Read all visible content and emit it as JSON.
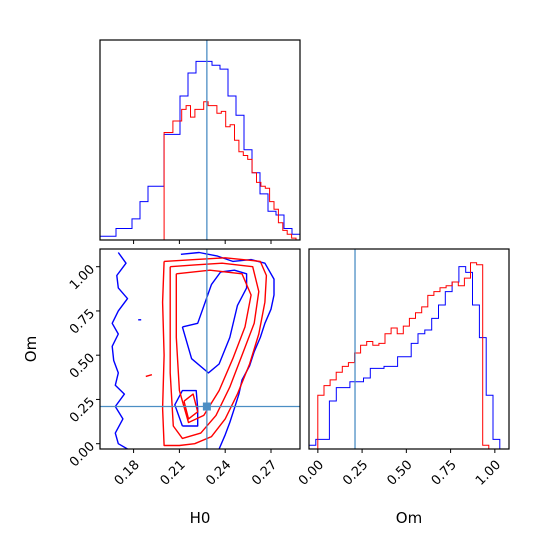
{
  "chart_data": {
    "type": "corner",
    "parameters": [
      "H0",
      "Om"
    ],
    "truth": {
      "H0": 0.228,
      "Om": 0.21
    },
    "colors": {
      "blue": "#0000ff",
      "red": "#ff0000",
      "truth": "#4c8ec4"
    },
    "panels": [
      {
        "id": "h0-marginal",
        "type": "histogram",
        "param": "H0",
        "xlim": [
          0.158,
          0.289
        ],
        "y_ticks_shown": false,
        "x_tick_labels_shown": false,
        "series": [
          {
            "color": "#0000ff",
            "bin_start": 0.158,
            "bin_width": 0.00524,
            "heights": [
              0.02,
              0.02,
              0.06,
              0.06,
              0.11,
              0.2,
              0.28,
              0.28,
              0.55,
              0.55,
              0.75,
              0.87,
              0.93,
              0.93,
              0.91,
              0.89,
              0.75,
              0.65,
              0.47,
              0.35,
              0.24,
              0.15,
              0.13,
              0.06,
              0.03,
              0.01
            ]
          },
          {
            "color": "#ff0000",
            "bin_start": 0.2,
            "bin_width": 0.00288,
            "heights": [
              0.56,
              0.56,
              0.62,
              0.62,
              0.68,
              0.7,
              0.64,
              0.68,
              0.68,
              0.72,
              0.7,
              0.7,
              0.66,
              0.67,
              0.59,
              0.6,
              0.52,
              0.46,
              0.44,
              0.42,
              0.35,
              0.3,
              0.28,
              0.27,
              0.2,
              0.16,
              0.09,
              0.05,
              0.03,
              0.01
            ]
          }
        ]
      },
      {
        "id": "h0-om-joint",
        "type": "contour",
        "params": [
          "H0",
          "Om"
        ],
        "xlim": [
          0.158,
          0.289
        ],
        "ylim": [
          -0.03,
          1.1
        ],
        "x_ticks": [
          0.18,
          0.21,
          0.24,
          0.27
        ],
        "x_tick_labels": [
          "0.18",
          "0.21",
          "0.24",
          "0.27"
        ],
        "y_ticks": [
          0.0,
          0.25,
          0.5,
          0.75,
          1.0
        ],
        "y_tick_labels": [
          "0.00",
          "0.25",
          "0.50",
          "0.75",
          "1.00"
        ],
        "xlabel": "H0",
        "ylabel": "Om",
        "series": [
          {
            "color": "#0000ff",
            "contours": [
              [
                [
                  0.17,
                  1.08
                ],
                [
                  0.175,
                  1.02
                ],
                [
                  0.169,
                  0.95
                ],
                [
                  0.17,
                  0.88
                ],
                [
                  0.176,
                  0.82
                ],
                [
                  0.17,
                  0.75
                ],
                [
                  0.166,
                  0.68
                ],
                [
                  0.17,
                  0.62
                ],
                [
                  0.166,
                  0.55
                ],
                [
                  0.167,
                  0.47
                ],
                [
                  0.17,
                  0.4
                ],
                [
                  0.168,
                  0.33
                ],
                [
                  0.174,
                  0.28
                ],
                [
                  0.168,
                  0.21
                ],
                [
                  0.173,
                  0.14
                ],
                [
                  0.168,
                  0.06
                ],
                [
                  0.17,
                  0.0
                ],
                [
                  0.176,
                  -0.03
                ]
              ],
              [
                [
                  0.211,
                  1.07
                ],
                [
                  0.223,
                  1.08
                ],
                [
                  0.235,
                  1.06
                ],
                [
                  0.245,
                  1.03
                ],
                [
                  0.257,
                  1.04
                ],
                [
                  0.266,
                  1.02
                ],
                [
                  0.272,
                  0.93
                ],
                [
                  0.272,
                  0.84
                ],
                [
                  0.27,
                  0.76
                ],
                [
                  0.266,
                  0.68
                ],
                [
                  0.263,
                  0.6
                ],
                [
                  0.259,
                  0.52
                ],
                [
                  0.256,
                  0.44
                ],
                [
                  0.251,
                  0.36
                ],
                [
                  0.249,
                  0.28
                ],
                [
                  0.246,
                  0.2
                ],
                [
                  0.243,
                  0.12
                ],
                [
                  0.24,
                  0.05
                ],
                [
                  0.236,
                  -0.03
                ]
              ],
              [
                [
                  0.212,
                  0.1
                ],
                [
                  0.222,
                  0.1
                ],
                [
                  0.222,
                  0.2
                ],
                [
                  0.221,
                  0.3
                ],
                [
                  0.212,
                  0.3
                ],
                [
                  0.207,
                  0.22
                ],
                [
                  0.212,
                  0.1
                ]
              ],
              [
                [
                  0.212,
                  0.66
                ],
                [
                  0.222,
                  0.68
                ],
                [
                  0.231,
                  0.9
                ],
                [
                  0.237,
                  0.97
                ],
                [
                  0.246,
                  0.98
                ],
                [
                  0.254,
                  0.96
                ],
                [
                  0.254,
                  0.88
                ],
                [
                  0.248,
                  0.78
                ],
                [
                  0.243,
                  0.6
                ],
                [
                  0.236,
                  0.45
                ],
                [
                  0.229,
                  0.4
                ],
                [
                  0.218,
                  0.48
                ],
                [
                  0.212,
                  0.66
                ]
              ],
              [
                [
                  0.183,
                  0.7
                ],
                [
                  0.185,
                  0.7
                ]
              ]
            ]
          },
          {
            "color": "#ff0000",
            "contours": [
              [
                [
                  0.2,
                  1.03
                ],
                [
                  0.199,
                  0.8
                ],
                [
                  0.2,
                  0.5
                ],
                [
                  0.199,
                  0.2
                ],
                [
                  0.2,
                  -0.01
                ],
                [
                  0.21,
                  -0.01
                ],
                [
                  0.22,
                  0.0
                ],
                [
                  0.231,
                  0.04
                ],
                [
                  0.24,
                  0.14
                ],
                [
                  0.248,
                  0.28
                ],
                [
                  0.256,
                  0.45
                ],
                [
                  0.262,
                  0.62
                ],
                [
                  0.266,
                  0.8
                ],
                [
                  0.267,
                  0.95
                ],
                [
                  0.263,
                  1.03
                ],
                [
                  0.24,
                  1.05
                ],
                [
                  0.22,
                  1.04
                ],
                [
                  0.2,
                  1.03
                ]
              ],
              [
                [
                  0.204,
                  1.0
                ],
                [
                  0.204,
                  0.7
                ],
                [
                  0.204,
                  0.4
                ],
                [
                  0.206,
                  0.1
                ],
                [
                  0.212,
                  0.03
                ],
                [
                  0.224,
                  0.06
                ],
                [
                  0.234,
                  0.16
                ],
                [
                  0.243,
                  0.32
                ],
                [
                  0.251,
                  0.5
                ],
                [
                  0.259,
                  0.68
                ],
                [
                  0.262,
                  0.86
                ],
                [
                  0.258,
                  1.0
                ],
                [
                  0.238,
                  1.02
                ],
                [
                  0.22,
                  1.01
                ],
                [
                  0.204,
                  1.0
                ]
              ],
              [
                [
                  0.208,
                  0.96
                ],
                [
                  0.208,
                  0.6
                ],
                [
                  0.21,
                  0.3
                ],
                [
                  0.216,
                  0.12
                ],
                [
                  0.226,
                  0.16
                ],
                [
                  0.236,
                  0.3
                ],
                [
                  0.245,
                  0.48
                ],
                [
                  0.253,
                  0.66
                ],
                [
                  0.257,
                  0.84
                ],
                [
                  0.251,
                  0.96
                ],
                [
                  0.23,
                  0.98
                ],
                [
                  0.208,
                  0.96
                ]
              ],
              [
                [
                  0.213,
                  0.24
                ],
                [
                  0.216,
                  0.14
                ],
                [
                  0.222,
                  0.18
                ],
                [
                  0.219,
                  0.28
                ],
                [
                  0.213,
                  0.24
                ]
              ],
              [
                [
                  0.188,
                  0.38
                ],
                [
                  0.192,
                  0.39
                ]
              ]
            ]
          }
        ]
      },
      {
        "id": "om-marginal",
        "type": "histogram",
        "param": "Om",
        "xlim": [
          -0.05,
          1.08
        ],
        "x_ticks": [
          0.0,
          0.25,
          0.5,
          0.75,
          1.0
        ],
        "x_tick_labels": [
          "0.00",
          "0.25",
          "0.50",
          "0.75",
          "1.00"
        ],
        "xlabel": "Om",
        "y_ticks_shown": false,
        "series": [
          {
            "color": "#0000ff",
            "bin_start": -0.05,
            "bin_width": 0.0385,
            "heights": [
              0.02,
              0.05,
              0.05,
              0.25,
              0.32,
              0.32,
              0.35,
              0.35,
              0.37,
              0.42,
              0.42,
              0.43,
              0.43,
              0.48,
              0.48,
              0.55,
              0.6,
              0.62,
              0.68,
              0.75,
              0.82,
              0.87,
              0.95,
              0.92,
              0.75,
              0.58,
              0.28,
              0.05
            ]
          },
          {
            "color": "#ff0000",
            "bin_start": 0.0,
            "bin_width": 0.0345,
            "heights": [
              0.28,
              0.33,
              0.36,
              0.4,
              0.43,
              0.45,
              0.5,
              0.54,
              0.56,
              0.54,
              0.55,
              0.6,
              0.63,
              0.6,
              0.64,
              0.68,
              0.71,
              0.74,
              0.8,
              0.82,
              0.84,
              0.85,
              0.87,
              0.85,
              0.89,
              0.97,
              0.96,
              0.02
            ]
          }
        ]
      }
    ]
  }
}
